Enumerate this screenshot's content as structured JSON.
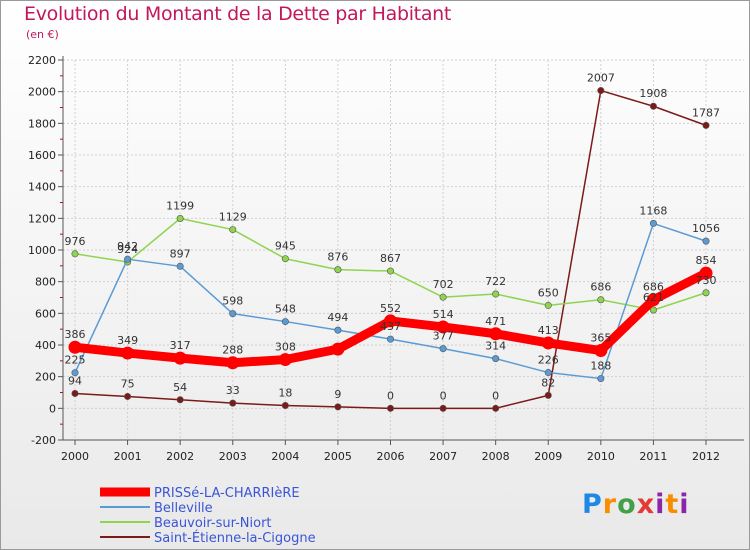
{
  "chart_data": {
    "type": "line",
    "title": "Evolution du Montant de la Dette par Habitant",
    "subtitle": "(en €)",
    "x": [
      "2000",
      "2001",
      "2002",
      "2003",
      "2004",
      "2005",
      "2006",
      "2007",
      "2008",
      "2009",
      "2010",
      "2011",
      "2012"
    ],
    "ylim": [
      -200,
      2200
    ],
    "yticks": [
      "-200",
      "0",
      "200",
      "400",
      "600",
      "800",
      "1000",
      "1200",
      "1400",
      "1600",
      "1800",
      "2000",
      "2200"
    ],
    "grid": true,
    "legend_position": "bottom-left",
    "series": [
      {
        "name": "PRISSé-LA-CHARRIèRE",
        "color": "#ff0000",
        "values": [
          386,
          349,
          317,
          288,
          308,
          374,
          552,
          514,
          471,
          413,
          365,
          686,
          854
        ],
        "labels": [
          "386",
          "349",
          "317",
          "288",
          "308",
          "",
          "552",
          "514",
          "471",
          "413",
          "365",
          "686",
          "854"
        ]
      },
      {
        "name": "Belleville",
        "color": "#5b9bd5",
        "values": [
          225,
          942,
          897,
          598,
          548,
          494,
          437,
          377,
          314,
          226,
          188,
          1168,
          1056
        ],
        "labels": [
          "225",
          "942",
          "897",
          "598",
          "548",
          "494",
          "437",
          "377",
          "314",
          "226",
          "188",
          "1168",
          "1056"
        ]
      },
      {
        "name": "Beauvoir-sur-Niort",
        "color": "#8fd44f",
        "values": [
          976,
          924,
          1199,
          1129,
          945,
          876,
          867,
          702,
          722,
          650,
          686,
          621,
          730
        ],
        "labels": [
          "976",
          "924",
          "1199",
          "1129",
          "945",
          "876",
          "867",
          "702",
          "722",
          "650",
          "686",
          "621",
          "730"
        ]
      },
      {
        "name": "Saint-Étienne-la-Cigogne",
        "color": "#7b1a1a",
        "values": [
          94,
          75,
          54,
          33,
          18,
          9,
          0,
          0,
          0,
          82,
          2007,
          1908,
          1787
        ],
        "labels": [
          "94",
          "75",
          "54",
          "33",
          "18",
          "9",
          "0",
          "0",
          "0",
          "82",
          "2007",
          "1908",
          "1787"
        ]
      }
    ]
  },
  "brand": {
    "p": "P",
    "r": "r",
    "o": "o",
    "x": "x",
    "i": "i",
    "t": "t",
    "i2": "i"
  }
}
